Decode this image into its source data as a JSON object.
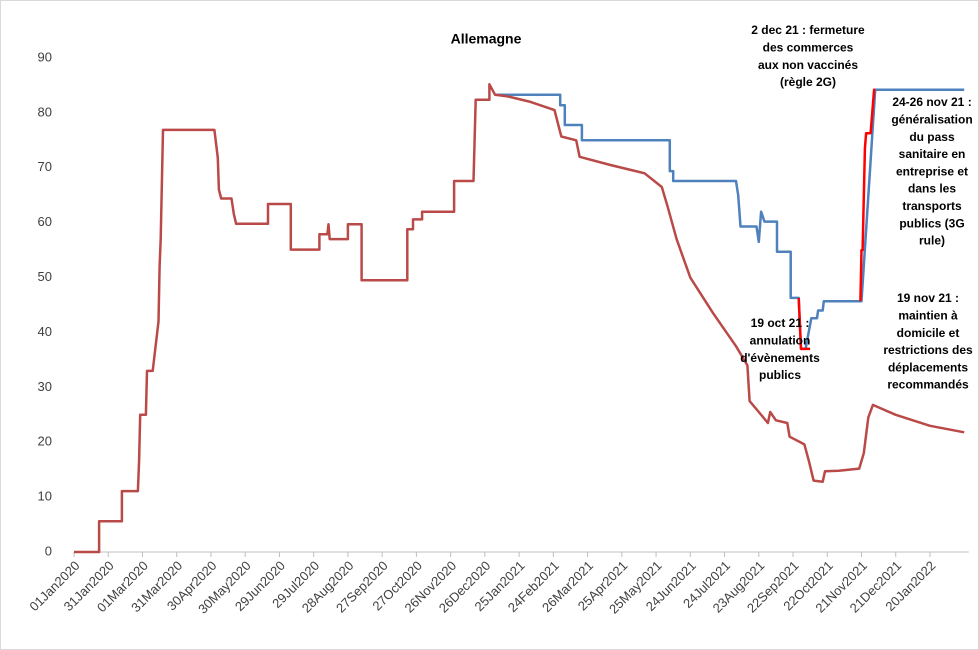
{
  "chart_data": {
    "type": "line",
    "title": "Allemagne",
    "xlim": [
      0,
      784
    ],
    "xticks": [
      {
        "value": 0,
        "label": "01Jan2020"
      },
      {
        "value": 30,
        "label": "31Jan2020"
      },
      {
        "value": 60,
        "label": "01Mar2020"
      },
      {
        "value": 90,
        "label": "31Mar2020"
      },
      {
        "value": 120,
        "label": "30Apr2020"
      },
      {
        "value": 150,
        "label": "30May2020"
      },
      {
        "value": 180,
        "label": "29Jun2020"
      },
      {
        "value": 210,
        "label": "29Jul2020"
      },
      {
        "value": 240,
        "label": "28Aug2020"
      },
      {
        "value": 270,
        "label": "27Sep2020"
      },
      {
        "value": 300,
        "label": "27Oct2020"
      },
      {
        "value": 330,
        "label": "26Nov2020"
      },
      {
        "value": 360,
        "label": "26Dec2020"
      },
      {
        "value": 390,
        "label": "25Jan2021"
      },
      {
        "value": 420,
        "label": "24Feb2021"
      },
      {
        "value": 450,
        "label": "26Mar2021"
      },
      {
        "value": 480,
        "label": "25Apr2021"
      },
      {
        "value": 510,
        "label": "25May2021"
      },
      {
        "value": 540,
        "label": "24Jun2021"
      },
      {
        "value": 570,
        "label": "24Jul2021"
      },
      {
        "value": 600,
        "label": "23Aug2021"
      },
      {
        "value": 630,
        "label": "22Sep2021"
      },
      {
        "value": 660,
        "label": "22Oct2021"
      },
      {
        "value": 690,
        "label": "21Nov2021"
      },
      {
        "value": 720,
        "label": "21Dec2021"
      },
      {
        "value": 750,
        "label": "20Jan2022"
      }
    ],
    "ylim": [
      0,
      90
    ],
    "yticks": [
      0,
      10,
      20,
      30,
      40,
      50,
      60,
      70,
      80,
      90
    ],
    "grid": false,
    "series": [
      {
        "color": "#4f81bd",
        "x": [
          369,
          426,
          426,
          430,
          430,
          445,
          445,
          522,
          522,
          525,
          525,
          580,
          582,
          584,
          598,
          600,
          602,
          605,
          616,
          616,
          628,
          628,
          635,
          637,
          641,
          646,
          651,
          652,
          656,
          657,
          666,
          667,
          690,
          702,
          780
        ],
        "values": [
          83.3,
          83.3,
          81.4,
          81.4,
          77.8,
          77.8,
          75,
          75,
          69.4,
          69.4,
          67.6,
          67.6,
          65,
          59.3,
          59.3,
          56.5,
          62,
          60.2,
          60.2,
          54.7,
          54.7,
          46.3,
          46.3,
          37,
          37,
          42.6,
          42.6,
          44,
          44,
          45.7,
          45.7,
          45.7,
          45.7,
          84.2,
          84.2
        ]
      },
      {
        "color": "#b94a48",
        "x": [
          0,
          22,
          22,
          42,
          42,
          56,
          57,
          58,
          63,
          64,
          69,
          74,
          75,
          76,
          78,
          81,
          123,
          126,
          127,
          129,
          138,
          140,
          142,
          170,
          170,
          190,
          190,
          215,
          215,
          222,
          223,
          224,
          225,
          226,
          240,
          240,
          252,
          252,
          292,
          292,
          297,
          297,
          305,
          305,
          333,
          333,
          350,
          352,
          364,
          364,
          369,
          380,
          400,
          421,
          427,
          440,
          443,
          470,
          500,
          515,
          520,
          528,
          540,
          560,
          580,
          590,
          592,
          600,
          608,
          610,
          615,
          625,
          627,
          640,
          644,
          648,
          656,
          658,
          670,
          688,
          692,
          696,
          700,
          720,
          750,
          780
        ],
        "values": [
          0,
          0,
          5.6,
          5.6,
          11.1,
          11.1,
          16.7,
          25,
          25,
          33,
          33,
          42,
          52,
          57,
          76.9,
          76.9,
          76.9,
          71.8,
          66,
          64.4,
          64.4,
          61.6,
          59.8,
          59.8,
          63.4,
          63.4,
          55.1,
          55.1,
          57.9,
          57.9,
          59.7,
          57,
          57,
          57,
          57,
          59.7,
          59.7,
          49.5,
          49.5,
          58.8,
          58.8,
          60.6,
          60.6,
          62,
          62,
          67.6,
          67.6,
          82.4,
          82.4,
          85.2,
          83.3,
          83,
          82,
          80.5,
          75.7,
          75,
          72,
          70.5,
          69,
          66.5,
          63,
          57,
          50,
          43.5,
          37.5,
          34,
          27.5,
          25.5,
          23.5,
          25.5,
          24,
          23.5,
          21,
          19.6,
          16.5,
          13,
          12.8,
          14.7,
          14.8,
          15.2,
          18,
          24.5,
          26.8,
          25,
          23,
          21.8
        ]
      },
      {
        "color": "#ff0000",
        "x": [
          635,
          637,
          645
        ],
        "values": [
          46.3,
          37,
          37
        ]
      },
      {
        "color": "#ff0000",
        "x": [
          689,
          690,
          691,
          693,
          694,
          697,
          698,
          701,
          702
        ],
        "values": [
          45.7,
          55,
          55,
          73.5,
          76.3,
          76.3,
          76.3,
          84.2,
          84.2
        ]
      }
    ],
    "annotations": [
      {
        "lines": [
          "2 dec 21 : fermeture",
          "des commerces",
          "aux non vaccinés",
          "(règle 2G)"
        ]
      },
      {
        "lines": [
          "24-26 nov 21 :",
          "généralisation",
          "du pass",
          "sanitaire en",
          "entreprise et",
          "dans les",
          "transports",
          "publics (3G",
          "rule)"
        ]
      },
      {
        "lines": [
          "19 oct 21 :",
          "annulation",
          "d'évènements",
          "publics"
        ]
      },
      {
        "lines": [
          "19 nov 21 :",
          "maintien à",
          "domicile et",
          "restrictions des",
          "déplacements",
          "recommandés"
        ]
      }
    ]
  }
}
